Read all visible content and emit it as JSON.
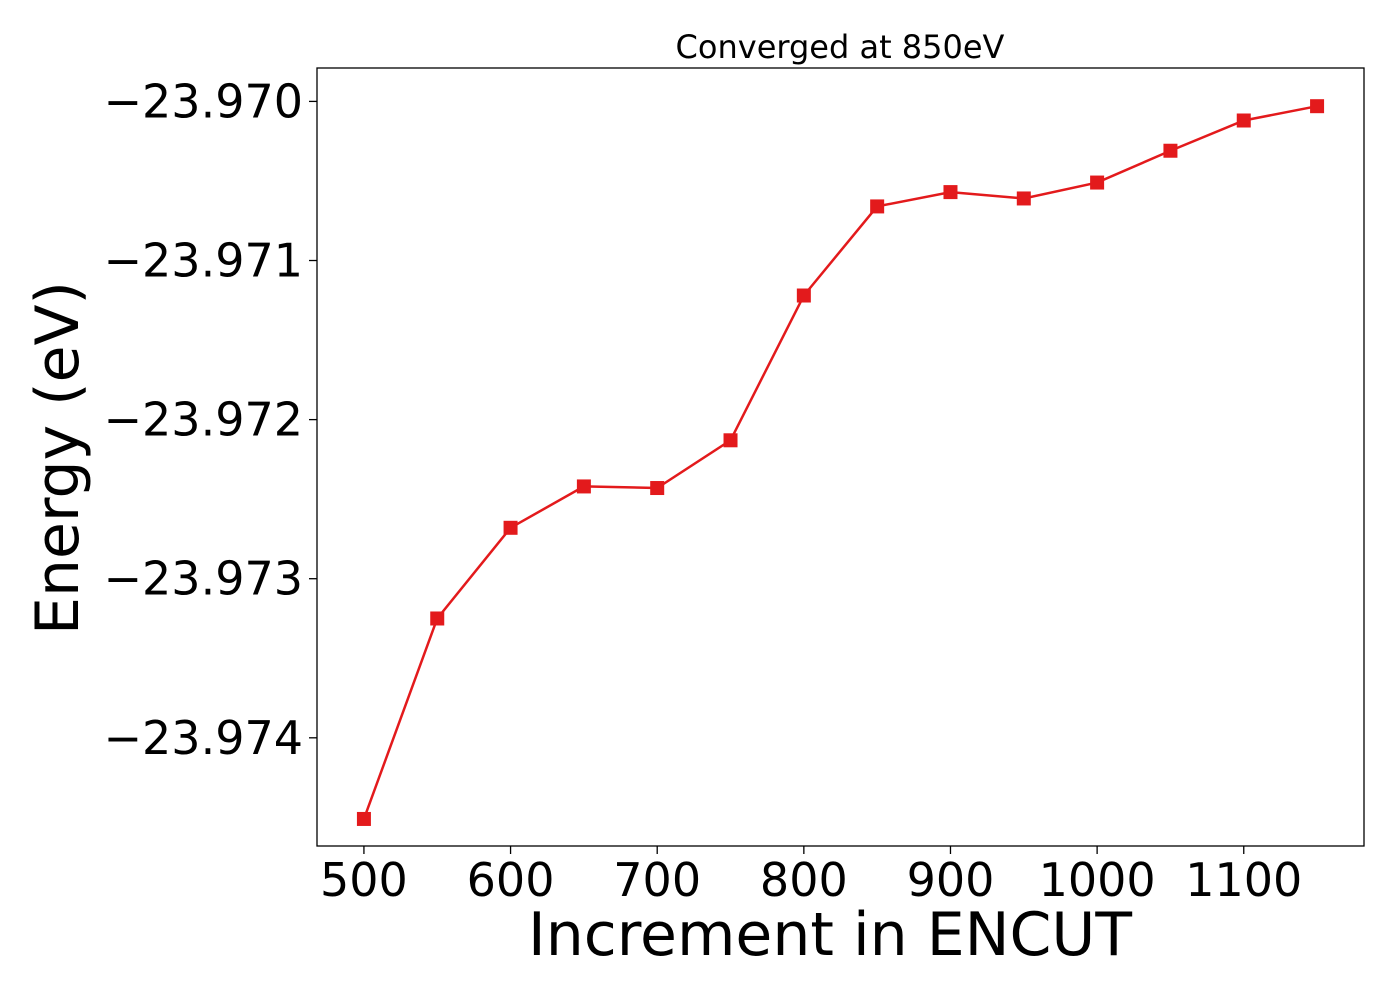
{
  "chart_data": {
    "type": "line",
    "title": "Converged at 850eV",
    "xlabel": "Increment in ENCUT",
    "ylabel": "Energy (eV)",
    "x": [
      500,
      550,
      600,
      650,
      700,
      750,
      800,
      850,
      900,
      950,
      1000,
      1050,
      1100,
      1150
    ],
    "series": [
      {
        "values": [
          -23.97451,
          -23.97325,
          -23.97268,
          -23.97242,
          -23.97243,
          -23.97213,
          -23.97122,
          -23.97066,
          -23.97057,
          -23.97061,
          -23.97051,
          -23.97031,
          -23.97012,
          -23.97003
        ],
        "color": "#e31a1c",
        "marker": "square"
      }
    ],
    "xlim": [
      468,
      1182
    ],
    "ylim": [
      -23.97468,
      -23.96979
    ],
    "xticks": [
      500,
      600,
      700,
      800,
      900,
      1000,
      1100
    ],
    "xtick_labels": [
      "500",
      "600",
      "700",
      "800",
      "900",
      "1000",
      "1100"
    ],
    "yticks": [
      -23.97,
      -23.971,
      -23.972,
      -23.973,
      -23.974
    ],
    "ytick_labels": [
      "−23.970",
      "−23.971",
      "−23.972",
      "−23.973",
      "−23.974"
    ],
    "grid": false,
    "legend": "none"
  }
}
